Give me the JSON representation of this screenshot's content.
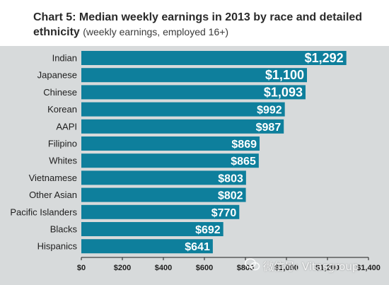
{
  "chart_data": {
    "type": "bar",
    "orientation": "horizontal",
    "title_prefix": "Chart 5:",
    "title": "Median weekly earnings in 2013 by race and detailed ethnicity",
    "subtitle": "(weekly earnings, employed 16+)",
    "categories": [
      "Indian",
      "Japanese",
      "Chinese",
      "Korean",
      "AAPI",
      "Filipino",
      "Whites",
      "Vietnamese",
      "Other Asian",
      "Pacific Islanders",
      "Blacks",
      "Hispanics"
    ],
    "values": [
      1292,
      1100,
      1093,
      992,
      987,
      869,
      865,
      803,
      802,
      770,
      692,
      641
    ],
    "value_labels": [
      "$1,292",
      "$1,100",
      "$1,093",
      "$992",
      "$987",
      "$869",
      "$865",
      "$803",
      "$802",
      "$770",
      "$692",
      "$641"
    ],
    "xlim": [
      0,
      1400
    ],
    "x_ticks": [
      0,
      200,
      400,
      600,
      800,
      1000,
      1200,
      1400
    ],
    "x_tick_labels": [
      "$0",
      "$200",
      "$400",
      "$600",
      "$800",
      "$1,000",
      "$1,200",
      "$1,400"
    ],
    "xlabel": "",
    "ylabel": "",
    "grid": false,
    "bar_color": "#0e7f9c",
    "background_color": "#d7dadb"
  },
  "watermark": {
    "text": "微信号: Vitasgroup"
  }
}
